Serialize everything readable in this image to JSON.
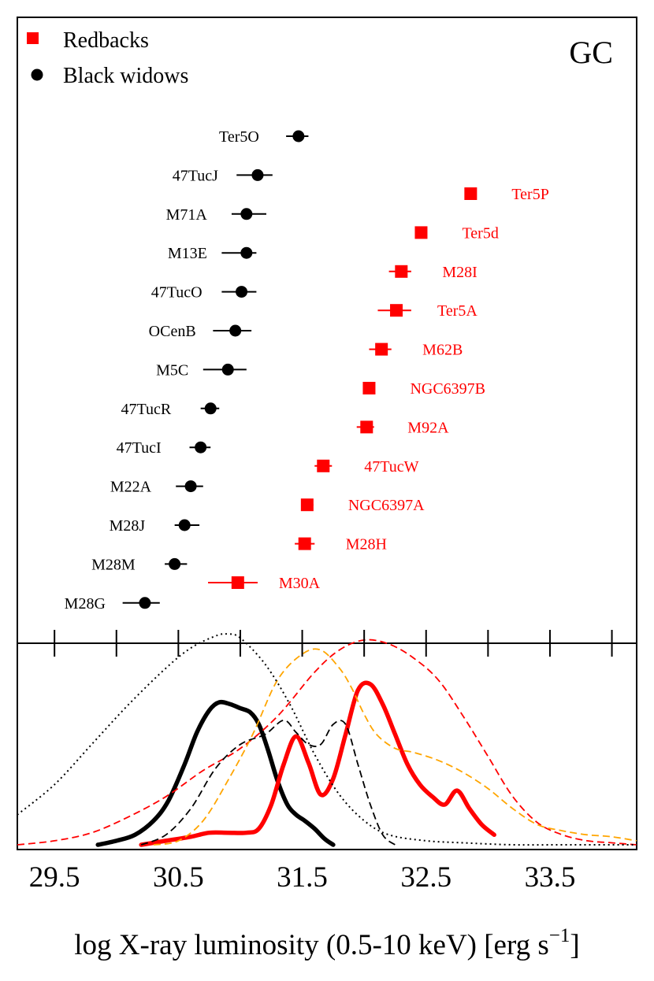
{
  "chart_data": {
    "type": "scatter",
    "panel_label": "GC",
    "xlabel_main": "log X-ray luminosity (0.5-10 keV) [erg s",
    "xlabel_exp": "−1",
    "xlabel_close": "]",
    "xlim": [
      29.2,
      34.2
    ],
    "xticks": [
      "29.5",
      "30.5",
      "31.5",
      "32.5",
      "33.5"
    ],
    "colors": {
      "redback": "#ff0000",
      "black_widow": "#000000",
      "orange": "#ffa500"
    },
    "legend": [
      {
        "name": "Redbacks",
        "marker": "square",
        "color": "#ff0000"
      },
      {
        "name": "Black widows",
        "marker": "circle",
        "color": "#000000"
      }
    ],
    "black_widows": [
      {
        "name": "Ter5O",
        "x": 31.47,
        "err_lo": 0.1,
        "err_hi": 0.08
      },
      {
        "name": "47TucJ",
        "x": 31.14,
        "err_lo": 0.17,
        "err_hi": 0.12
      },
      {
        "name": "M71A",
        "x": 31.05,
        "err_lo": 0.12,
        "err_hi": 0.16
      },
      {
        "name": "M13E",
        "x": 31.05,
        "err_lo": 0.2,
        "err_hi": 0.08
      },
      {
        "name": "47TucO",
        "x": 31.01,
        "err_lo": 0.16,
        "err_hi": 0.12
      },
      {
        "name": "OCenB",
        "x": 30.96,
        "err_lo": 0.18,
        "err_hi": 0.13
      },
      {
        "name": "M5C",
        "x": 30.9,
        "err_lo": 0.2,
        "err_hi": 0.15
      },
      {
        "name": "47TucR",
        "x": 30.76,
        "err_lo": 0.08,
        "err_hi": 0.07
      },
      {
        "name": "47TucI",
        "x": 30.68,
        "err_lo": 0.09,
        "err_hi": 0.08
      },
      {
        "name": "M22A",
        "x": 30.6,
        "err_lo": 0.12,
        "err_hi": 0.1
      },
      {
        "name": "M28J",
        "x": 30.55,
        "err_lo": 0.08,
        "err_hi": 0.12
      },
      {
        "name": "M28M",
        "x": 30.47,
        "err_lo": 0.08,
        "err_hi": 0.1
      },
      {
        "name": "M28G",
        "x": 30.23,
        "err_lo": 0.18,
        "err_hi": 0.12
      }
    ],
    "redbacks": [
      {
        "name": "Ter5P",
        "x": 32.86,
        "err_lo": 0.0,
        "err_hi": 0.0
      },
      {
        "name": "Ter5d",
        "x": 32.46,
        "err_lo": 0.0,
        "err_hi": 0.0
      },
      {
        "name": "M28I",
        "x": 32.3,
        "err_lo": 0.1,
        "err_hi": 0.08
      },
      {
        "name": "Ter5A",
        "x": 32.26,
        "err_lo": 0.15,
        "err_hi": 0.12
      },
      {
        "name": "M62B",
        "x": 32.14,
        "err_lo": 0.1,
        "err_hi": 0.08
      },
      {
        "name": "NGC6397B",
        "x": 32.04,
        "err_lo": 0.0,
        "err_hi": 0.0
      },
      {
        "name": "M92A",
        "x": 32.02,
        "err_lo": 0.08,
        "err_hi": 0.06
      },
      {
        "name": "47TucW",
        "x": 31.67,
        "err_lo": 0.07,
        "err_hi": 0.07
      },
      {
        "name": "NGC6397A",
        "x": 31.54,
        "err_lo": 0.05,
        "err_hi": 0.05
      },
      {
        "name": "M28H",
        "x": 31.52,
        "err_lo": 0.08,
        "err_hi": 0.08
      },
      {
        "name": "M30A",
        "x": 30.98,
        "err_lo": 0.24,
        "err_hi": 0.16
      }
    ],
    "distributions": [
      {
        "name": "Black widows (GC)",
        "style": "thick-solid",
        "color": "#000000",
        "x": [
          29.85,
          30.0,
          30.15,
          30.3,
          30.42,
          30.55,
          30.65,
          30.75,
          30.83,
          30.92,
          31.0,
          31.08,
          31.15,
          31.22,
          31.3,
          31.38,
          31.45,
          31.52,
          31.6,
          31.68,
          31.75
        ],
        "y": [
          0.0,
          0.02,
          0.05,
          0.12,
          0.22,
          0.4,
          0.56,
          0.67,
          0.71,
          0.7,
          0.68,
          0.66,
          0.6,
          0.48,
          0.32,
          0.2,
          0.15,
          0.12,
          0.08,
          0.03,
          0.0
        ]
      },
      {
        "name": "Redbacks (GC)",
        "style": "thick-solid",
        "color": "#ff0000",
        "x": [
          30.2,
          30.4,
          30.6,
          30.75,
          30.9,
          31.05,
          31.15,
          31.25,
          31.35,
          31.45,
          31.55,
          31.65,
          31.75,
          31.85,
          31.95,
          32.05,
          32.15,
          32.25,
          32.35,
          32.45,
          32.55,
          32.65,
          32.75,
          32.85,
          32.95,
          33.05
        ],
        "y": [
          0.0,
          0.02,
          0.04,
          0.06,
          0.06,
          0.06,
          0.08,
          0.2,
          0.4,
          0.54,
          0.41,
          0.25,
          0.33,
          0.55,
          0.77,
          0.8,
          0.7,
          0.55,
          0.4,
          0.3,
          0.24,
          0.2,
          0.27,
          0.18,
          0.1,
          0.05
        ]
      },
      {
        "name": "Redbacks (all, dashed)",
        "style": "dashed",
        "color": "#ff0000",
        "x": [
          29.2,
          29.5,
          29.8,
          30.1,
          30.4,
          30.7,
          31.0,
          31.3,
          31.6,
          31.8,
          32.0,
          32.2,
          32.4,
          32.6,
          32.8,
          33.0,
          33.2,
          33.4,
          33.6,
          33.8,
          34.0,
          34.2
        ],
        "y": [
          0.0,
          0.02,
          0.06,
          0.14,
          0.24,
          0.37,
          0.48,
          0.64,
          0.86,
          0.97,
          1.02,
          1.0,
          0.93,
          0.82,
          0.64,
          0.44,
          0.24,
          0.11,
          0.05,
          0.02,
          0.01,
          0.0
        ]
      },
      {
        "name": "Orange dashed",
        "style": "dashed",
        "color": "#ffa500",
        "x": [
          30.3,
          30.5,
          30.7,
          30.9,
          31.1,
          31.3,
          31.5,
          31.65,
          31.8,
          31.9,
          32.0,
          32.1,
          32.25,
          32.4,
          32.6,
          32.8,
          33.0,
          33.2,
          33.4,
          33.6,
          33.8,
          34.0,
          34.2
        ],
        "y": [
          0.0,
          0.02,
          0.12,
          0.32,
          0.55,
          0.82,
          0.95,
          0.97,
          0.88,
          0.78,
          0.65,
          0.55,
          0.48,
          0.46,
          0.42,
          0.36,
          0.28,
          0.18,
          0.1,
          0.07,
          0.05,
          0.04,
          0.02
        ]
      },
      {
        "name": "Black widows (all, dashed)",
        "style": "dashed",
        "color": "#000000",
        "x": [
          30.2,
          30.4,
          30.6,
          30.8,
          31.0,
          31.2,
          31.35,
          31.45,
          31.55,
          31.65,
          31.75,
          31.85,
          31.95,
          32.05,
          32.15,
          32.25
        ],
        "y": [
          0.0,
          0.05,
          0.18,
          0.38,
          0.5,
          0.55,
          0.62,
          0.56,
          0.5,
          0.5,
          0.6,
          0.6,
          0.4,
          0.2,
          0.05,
          0.0
        ]
      },
      {
        "name": "Dotted",
        "style": "dotted",
        "color": "#000000",
        "x": [
          29.2,
          29.5,
          29.8,
          30.1,
          30.4,
          30.6,
          30.8,
          30.9,
          31.0,
          31.2,
          31.4,
          31.6,
          31.8,
          32.0,
          32.2,
          32.5,
          32.8,
          33.2,
          33.6,
          34.2
        ],
        "y": [
          0.15,
          0.3,
          0.5,
          0.7,
          0.88,
          0.98,
          1.04,
          1.05,
          1.03,
          0.9,
          0.7,
          0.45,
          0.25,
          0.12,
          0.05,
          0.02,
          0.01,
          0.0,
          0.0,
          0.0
        ]
      }
    ]
  }
}
